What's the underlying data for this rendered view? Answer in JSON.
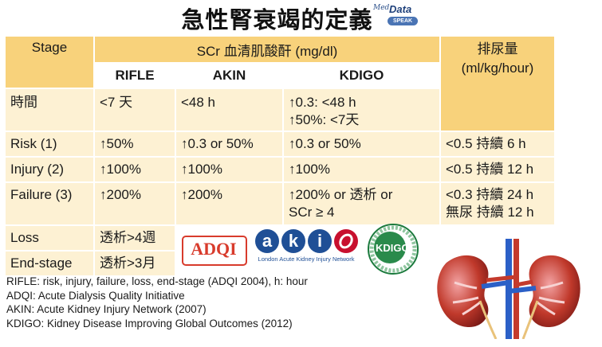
{
  "title": "急性腎衰竭的定義",
  "logo_medtalk": {
    "top": "Med",
    "main": "Data",
    "badge": "SPEAK"
  },
  "table": {
    "header_stage": "Stage",
    "header_scr": "SCr 血清肌酸酐 (mg/dl)",
    "header_urine": "排尿量\n(ml/kg/hour)",
    "sub_rifle": "RIFLE",
    "sub_akin": "AKIN",
    "sub_kdigo": "KDIGO",
    "rows": [
      {
        "stage": "時間",
        "rifle": "<7 天",
        "akin": "<48 h",
        "kdigo": "↑0.3: <48 h\n↑50%: <7天",
        "urine": ""
      },
      {
        "stage": "Risk (1)",
        "rifle": "↑50%",
        "akin": "↑0.3 or 50%",
        "kdigo": "↑0.3 or 50%",
        "urine": "<0.5 持續 6 h"
      },
      {
        "stage": "Injury (2)",
        "rifle": "↑100%",
        "akin": "↑100%",
        "kdigo": "↑100%",
        "urine": "<0.5 持續 12 h"
      },
      {
        "stage": "Failure (3)",
        "rifle": "↑200%",
        "akin": "↑200%",
        "kdigo": "↑200% or 透析 or\nSCr ≥ 4",
        "urine": "<0.3 持續 24 h\n無尿 持續 12 h"
      },
      {
        "stage": "Loss",
        "rifle": "透析>4週"
      },
      {
        "stage": "End-stage",
        "rifle": "透析>3月"
      }
    ]
  },
  "logos": {
    "adqi": "ADQI",
    "aki_letters": [
      "a",
      "k",
      "i"
    ],
    "aki_caption": "London Acute Kidney Injury Network",
    "kdigo_text": "KDIGO"
  },
  "notes": [
    "RIFLE: risk, injury, failure, loss, end-stage (ADQI 2004), h: hour",
    "ADQI: Acute Dialysis Quality Initiative",
    "AKIN: Acute Kidney Injury Network (2007)",
    "KDIGO: Kidney Disease Improving Global Outcomes (2012)"
  ],
  "colors": {
    "header": "#f8d27b",
    "cell": "#fdf1d3",
    "accent_red": "#d83b2c",
    "aki_blue": "#1f4f96"
  }
}
